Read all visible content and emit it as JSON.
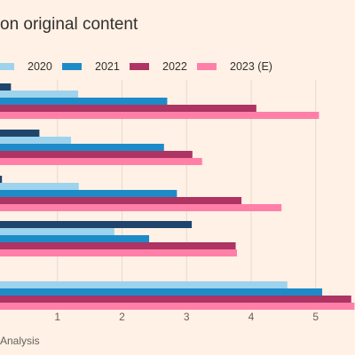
{
  "chart_data": {
    "type": "bar",
    "orientation": "horizontal",
    "title": "on original content",
    "source": "Analysis",
    "series": [
      {
        "name": "2020",
        "color": "#9dd3ec",
        "values": [
          null,
          1.32,
          1.21,
          1.33,
          1.88,
          4.56
        ]
      },
      {
        "name": "2021",
        "color": "#1e8bc9",
        "values": [
          null,
          2.7,
          2.65,
          2.85,
          2.42,
          5.1
        ]
      },
      {
        "name": "2022",
        "color": "#ad3463",
        "values": [
          null,
          4.08,
          3.09,
          3.85,
          3.76,
          5.55
        ]
      },
      {
        "name": "2023 (E)",
        "color": "#ff7fa8",
        "values": [
          null,
          5.05,
          3.24,
          4.47,
          3.78,
          5.6
        ]
      }
    ],
    "extra_series": {
      "color": "#20456c",
      "values": [
        null,
        0.28,
        0.72,
        0.14,
        3.08,
        null
      ]
    },
    "x_ticks": [
      "1",
      "2",
      "3",
      "4",
      "5"
    ],
    "xlim": [
      0.0,
      5.55
    ],
    "grid": true,
    "legend_position": "top"
  }
}
